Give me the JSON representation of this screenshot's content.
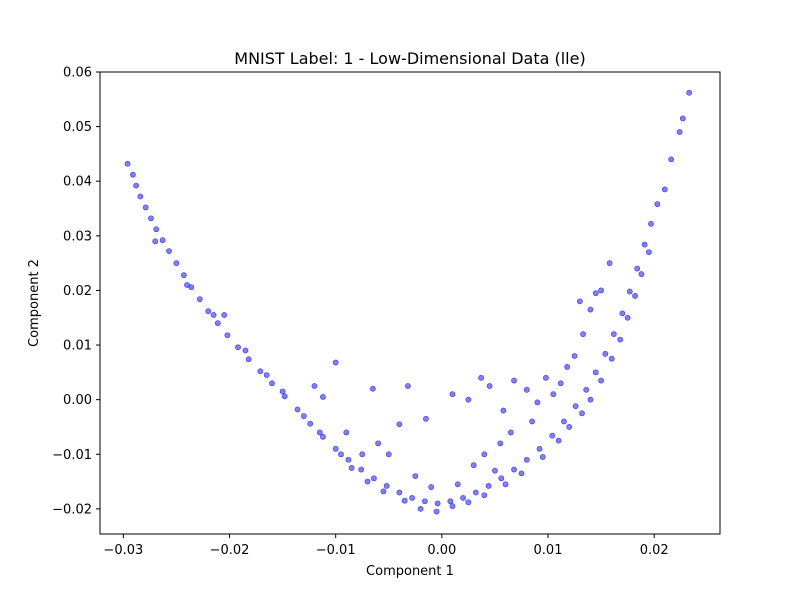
{
  "chart_data": {
    "type": "scatter",
    "title": "MNIST Label: 1 - Low-Dimensional Data (lle)",
    "xlabel": "Component 1",
    "ylabel": "Component 2",
    "xlim": [
      -0.0322,
      0.0262
    ],
    "ylim": [
      -0.0246,
      0.06
    ],
    "xticks": [
      -0.03,
      -0.02,
      -0.01,
      0.0,
      0.01,
      0.02
    ],
    "xtick_labels": [
      "−0.03",
      "−0.02",
      "−0.01",
      "0.00",
      "0.01",
      "0.02"
    ],
    "yticks": [
      -0.02,
      -0.01,
      0.0,
      0.01,
      0.02,
      0.03,
      0.04,
      0.05,
      0.06
    ],
    "ytick_labels": [
      "−0.02",
      "−0.01",
      "0.00",
      "0.01",
      "0.02",
      "0.03",
      "0.04",
      "0.05",
      "0.06"
    ],
    "grid": false,
    "legend": "none",
    "marker_color": "#0000ff",
    "marker_alpha": 0.5,
    "series": [
      {
        "points": [
          [
            -0.0296,
            0.0432
          ],
          [
            -0.0291,
            0.0412
          ],
          [
            -0.0288,
            0.0392
          ],
          [
            -0.0284,
            0.0372
          ],
          [
            -0.0279,
            0.0352
          ],
          [
            -0.0274,
            0.0332
          ],
          [
            -0.0269,
            0.0312
          ],
          [
            -0.0263,
            0.0292
          ],
          [
            -0.0257,
            0.0272
          ],
          [
            -0.025,
            0.025
          ],
          [
            -0.0243,
            0.0228
          ],
          [
            -0.0236,
            0.0206
          ],
          [
            -0.0228,
            0.0184
          ],
          [
            -0.022,
            0.0162
          ],
          [
            -0.0211,
            0.014
          ],
          [
            -0.0202,
            0.0118
          ],
          [
            -0.0192,
            0.0096
          ],
          [
            -0.0182,
            0.0074
          ],
          [
            -0.0171,
            0.0052
          ],
          [
            -0.016,
            0.003
          ],
          [
            -0.0148,
            0.0006
          ],
          [
            -0.0136,
            -0.0018
          ],
          [
            -0.0124,
            -0.0044
          ],
          [
            -0.0112,
            -0.0068
          ],
          [
            -0.01,
            -0.009
          ],
          [
            -0.0088,
            -0.011
          ],
          [
            -0.0076,
            -0.0128
          ],
          [
            -0.0064,
            -0.0144
          ],
          [
            -0.0052,
            -0.0158
          ],
          [
            -0.004,
            -0.017
          ],
          [
            -0.0028,
            -0.018
          ],
          [
            -0.0016,
            -0.0186
          ],
          [
            -0.0004,
            -0.019
          ],
          [
            0.0008,
            -0.0186
          ],
          [
            0.002,
            -0.018
          ],
          [
            0.0032,
            -0.017
          ],
          [
            0.0044,
            -0.0158
          ],
          [
            0.0056,
            -0.0144
          ],
          [
            0.0068,
            -0.0128
          ],
          [
            0.008,
            -0.011
          ],
          [
            0.0092,
            -0.009
          ],
          [
            0.0104,
            -0.0066
          ],
          [
            0.0115,
            -0.004
          ],
          [
            0.0126,
            -0.0012
          ],
          [
            0.0136,
            0.0018
          ],
          [
            0.0145,
            0.005
          ],
          [
            0.0154,
            0.0084
          ],
          [
            0.0162,
            0.012
          ],
          [
            0.017,
            0.0158
          ],
          [
            0.0177,
            0.0198
          ],
          [
            0.0184,
            0.024
          ],
          [
            0.0191,
            0.0284
          ],
          [
            0.0197,
            0.0322
          ],
          [
            0.0203,
            0.0358
          ],
          [
            0.021,
            0.0385
          ],
          [
            0.0216,
            0.044
          ],
          [
            0.0224,
            0.049
          ],
          [
            0.0227,
            0.0515
          ],
          [
            0.0233,
            0.0562
          ],
          [
            -0.027,
            0.029
          ],
          [
            -0.024,
            0.021
          ],
          [
            -0.0215,
            0.0155
          ],
          [
            -0.0185,
            0.009
          ],
          [
            -0.0165,
            0.0045
          ],
          [
            -0.015,
            0.0015
          ],
          [
            -0.013,
            -0.003
          ],
          [
            -0.0115,
            -0.006
          ],
          [
            -0.0095,
            -0.01
          ],
          [
            -0.0085,
            -0.0125
          ],
          [
            -0.007,
            -0.015
          ],
          [
            -0.0055,
            -0.0168
          ],
          [
            -0.0035,
            -0.0185
          ],
          [
            -0.002,
            -0.02
          ],
          [
            -0.0005,
            -0.0205
          ],
          [
            0.001,
            -0.0195
          ],
          [
            0.0025,
            -0.0188
          ],
          [
            0.004,
            -0.0175
          ],
          [
            0.006,
            -0.0155
          ],
          [
            0.0075,
            -0.0135
          ],
          [
            0.0095,
            -0.0105
          ],
          [
            0.011,
            -0.0075
          ],
          [
            0.012,
            -0.005
          ],
          [
            0.0132,
            -0.0025
          ],
          [
            0.014,
            0.0
          ],
          [
            0.015,
            0.0035
          ],
          [
            0.016,
            0.0075
          ],
          [
            0.0168,
            0.011
          ],
          [
            0.0175,
            0.015
          ],
          [
            0.0182,
            0.019
          ],
          [
            0.0188,
            0.023
          ],
          [
            0.0195,
            0.027
          ],
          [
            -0.0205,
            0.0155
          ],
          [
            -0.012,
            0.0025
          ],
          [
            -0.0112,
            0.0005
          ],
          [
            -0.01,
            0.0068
          ],
          [
            -0.0065,
            0.002
          ],
          [
            -0.0032,
            0.0025
          ],
          [
            -0.0015,
            -0.0035
          ],
          [
            -0.004,
            -0.0045
          ],
          [
            0.001,
            0.001
          ],
          [
            0.0025,
            0.0
          ],
          [
            0.0037,
            0.004
          ],
          [
            0.0045,
            0.0025
          ],
          [
            0.0058,
            -0.002
          ],
          [
            0.0068,
            0.0035
          ],
          [
            0.008,
            0.0018
          ],
          [
            0.0085,
            -0.004
          ],
          [
            0.009,
            -0.0005
          ],
          [
            0.0098,
            0.004
          ],
          [
            0.0105,
            0.001
          ],
          [
            0.0112,
            0.003
          ],
          [
            0.0118,
            0.006
          ],
          [
            0.0125,
            0.008
          ],
          [
            0.0133,
            0.012
          ],
          [
            0.014,
            0.0165
          ],
          [
            0.0145,
            0.0195
          ],
          [
            0.015,
            0.02
          ],
          [
            0.0158,
            0.025
          ],
          [
            0.013,
            0.018
          ],
          [
            0.0065,
            -0.006
          ],
          [
            0.0055,
            -0.008
          ],
          [
            0.004,
            -0.01
          ],
          [
            0.003,
            -0.012
          ],
          [
            -0.005,
            -0.01
          ],
          [
            -0.006,
            -0.008
          ],
          [
            -0.0075,
            -0.01
          ],
          [
            -0.009,
            -0.006
          ],
          [
            -0.0025,
            -0.014
          ],
          [
            -0.001,
            -0.016
          ],
          [
            0.0015,
            -0.0155
          ],
          [
            0.005,
            -0.013
          ]
        ]
      }
    ]
  }
}
